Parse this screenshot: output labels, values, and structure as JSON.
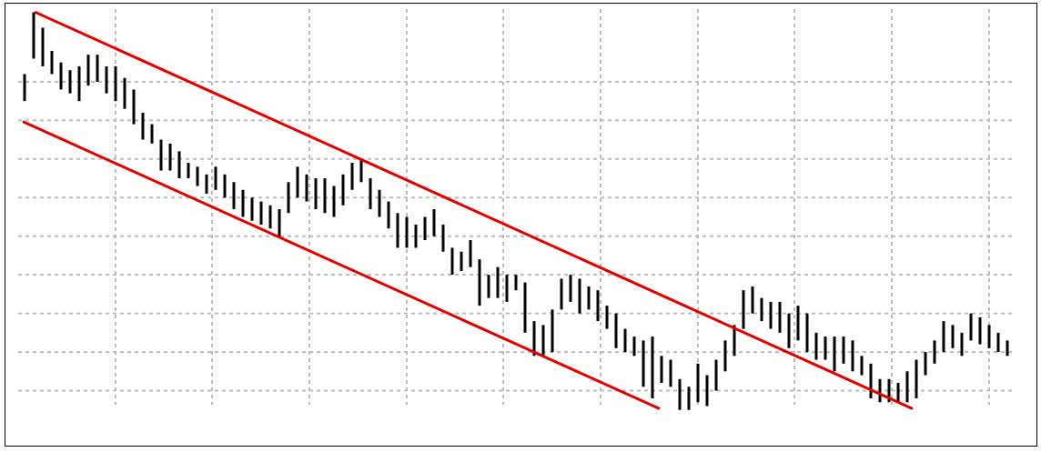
{
  "chart_data": {
    "type": "range-bar",
    "color": "#000000",
    "channel_color": "#e00000",
    "grid": true,
    "xlim": [
      -2.1,
      111.1
    ],
    "ylim": [
      9.4,
      20
    ],
    "xticks": [
      10,
      20.6,
      31.3,
      42,
      52.6,
      63.3,
      74,
      84.6,
      95.3,
      106
    ],
    "yticks": [
      10,
      11,
      12,
      13,
      14,
      15,
      16,
      17,
      18
    ],
    "high": [
      18.2,
      19.8,
      19.4,
      18.8,
      18.5,
      18.3,
      18.4,
      18.7,
      18.7,
      18.4,
      18.4,
      18.1,
      17.8,
      17.2,
      16.9,
      16.5,
      16.4,
      16.2,
      15.9,
      15.8,
      15.6,
      15.8,
      15.6,
      15.4,
      15.2,
      15.0,
      14.9,
      14.8,
      14.7,
      15.4,
      15.8,
      15.6,
      15.5,
      15.5,
      15.3,
      15.6,
      15.9,
      16.0,
      15.5,
      15.2,
      14.9,
      14.6,
      14.5,
      14.3,
      14.5,
      14.7,
      14.3,
      13.7,
      13.6,
      13.9,
      13.4,
      13.0,
      13.2,
      13.0,
      13.0,
      12.8,
      11.8,
      11.7,
      12.1,
      12.9,
      13.0,
      12.9,
      12.7,
      12.6,
      12.2,
      12.0,
      11.6,
      11.4,
      11.3,
      11.4,
      10.9,
      10.8,
      10.3,
      10.1,
      10.7,
      10.4,
      10.8,
      11.3,
      11.7,
      12.6,
      12.7,
      12.4,
      12.3,
      12.3,
      12.0,
      12.2,
      12.0,
      11.5,
      11.4,
      11.4,
      11.4,
      11.3,
      10.9,
      10.7,
      10.3,
      10.3,
      10.2,
      10.5,
      10.8,
      11.0,
      11.3,
      11.8,
      11.7,
      11.5,
      12.0,
      11.9,
      11.7,
      11.5,
      11.3
    ],
    "low": [
      17.5,
      18.6,
      18.4,
      18.2,
      17.8,
      17.7,
      17.5,
      17.9,
      18.0,
      17.7,
      17.5,
      17.3,
      16.9,
      16.5,
      16.4,
      15.7,
      15.7,
      15.5,
      15.5,
      15.3,
      15.1,
      15.2,
      15.0,
      14.7,
      14.5,
      14.4,
      14.3,
      14.2,
      14.0,
      14.6,
      15.0,
      14.9,
      14.7,
      14.6,
      14.5,
      14.8,
      15.2,
      15.4,
      14.7,
      14.5,
      14.2,
      13.7,
      13.7,
      13.7,
      13.9,
      14.0,
      13.6,
      13.0,
      13.1,
      13.2,
      12.2,
      12.4,
      12.4,
      12.3,
      12.6,
      11.5,
      10.9,
      10.9,
      11.0,
      12.1,
      12.3,
      12.0,
      12.1,
      11.8,
      11.6,
      11.1,
      11.0,
      10.9,
      10.1,
      9.8,
      10.2,
      10.1,
      9.5,
      9.5,
      9.7,
      9.6,
      10.0,
      10.5,
      10.9,
      11.6,
      12.0,
      11.8,
      11.6,
      11.5,
      11.1,
      11.3,
      11.0,
      10.8,
      10.8,
      10.5,
      10.7,
      10.5,
      10.4,
      9.8,
      9.7,
      9.7,
      9.7,
      9.7,
      9.8,
      10.4,
      10.7,
      11.0,
      11.1,
      10.9,
      11.3,
      11.2,
      11.1,
      11.0,
      10.9
    ],
    "channel": [
      {
        "x": [
          1.1,
          97.6
        ],
        "y": [
          19.81,
          9.53
        ]
      },
      {
        "x": [
          -0.2,
          69.8
        ],
        "y": [
          16.97,
          9.53
        ]
      }
    ]
  }
}
